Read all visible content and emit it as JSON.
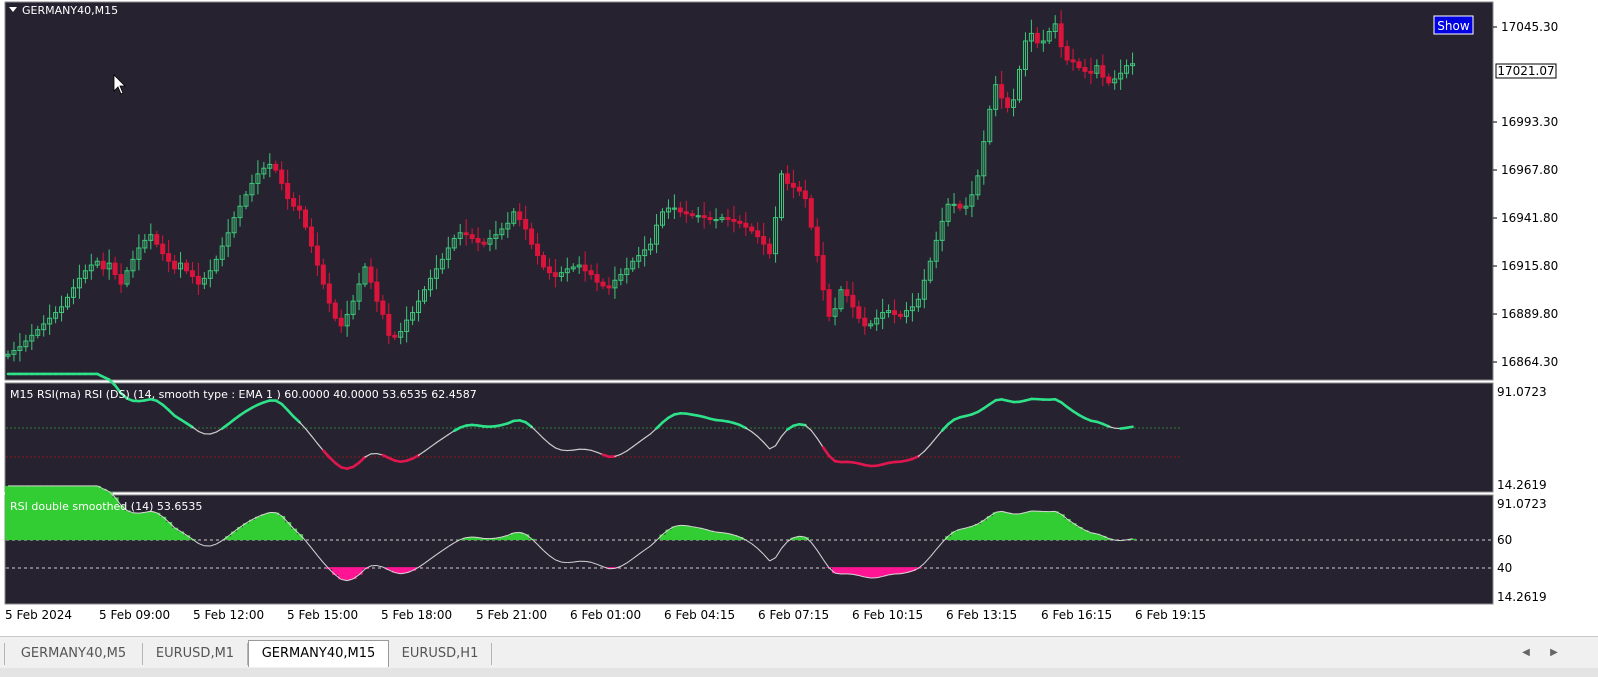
{
  "chart": {
    "symbol_label": "GERMANY40,M15",
    "show_button": "Show",
    "price_axis": [
      "17045.30",
      "16993.30",
      "16967.80",
      "16941.80",
      "16915.80",
      "16889.80",
      "16864.30"
    ],
    "current_price": "17021.07"
  },
  "indicator1": {
    "label": "M15 RSI(ma) RSI (DS) (14, smooth type : EMA  1 ) 60.0000 40.0000 53.6535 62.4587",
    "axis_max": "91.0723",
    "axis_min": "14.2619"
  },
  "indicator2": {
    "label": "RSI double smoothed (14) 53.6535",
    "axis_max": "91.0723",
    "level_60": "60",
    "level_40": "40",
    "axis_min": "14.2619"
  },
  "time_axis": [
    "5 Feb 2024",
    "5 Feb 09:00",
    "5 Feb 12:00",
    "5 Feb 15:00",
    "5 Feb 18:00",
    "5 Feb 21:00",
    "6 Feb 01:00",
    "6 Feb 04:15",
    "6 Feb 07:15",
    "6 Feb 10:15",
    "6 Feb 13:15",
    "6 Feb 16:15",
    "6 Feb 19:15"
  ],
  "tabs": [
    {
      "label": "GERMANY40,M5",
      "active": false
    },
    {
      "label": "EURUSD,M1",
      "active": false
    },
    {
      "label": "GERMANY40,M15",
      "active": true
    },
    {
      "label": "EURUSD,H1",
      "active": false
    }
  ],
  "colors": {
    "background": "#272230",
    "bull": "#3cc878",
    "bear": "#dc143c",
    "rsi_up": "#2ee28a",
    "rsi_down": "#e0174f",
    "rsi_neutral": "#cccccc",
    "fill_up": "#32cd32",
    "fill_down": "#ff1493"
  },
  "chart_data": {
    "type": "candlestick",
    "price_range": [
      16855,
      17053
    ],
    "closes": [
      16868,
      16870,
      16872,
      16875,
      16878,
      16881,
      16884,
      16887,
      16890,
      16893,
      16898,
      16903,
      16908,
      16912,
      16915,
      16917,
      16913,
      16916,
      16910,
      16905,
      16912,
      16918,
      16924,
      16928,
      16931,
      16926,
      16921,
      16917,
      16913,
      16916,
      16912,
      16909,
      16905,
      16908,
      16912,
      16918,
      16925,
      16932,
      16940,
      16946,
      16952,
      16958,
      16963,
      16966,
      16968,
      16965,
      16958,
      16950,
      16946,
      16944,
      16935,
      16925,
      16915,
      16905,
      16895,
      16887,
      16883,
      16889,
      16896,
      16905,
      16914,
      16906,
      16896,
      16889,
      16878,
      16877,
      16880,
      16886,
      16890,
      16896,
      16902,
      16908,
      16913,
      16918,
      16924,
      16929,
      16932,
      16931,
      16929,
      16927,
      16926,
      16929,
      16931,
      16934,
      16937,
      16943,
      16939,
      16934,
      16926,
      16920,
      16914,
      16911,
      16909,
      16911,
      16913,
      16914,
      16915,
      16912,
      16910,
      16906,
      16904,
      16903,
      16907,
      16910,
      16913,
      16917,
      16920,
      16923,
      16926,
      16936,
      16943,
      16945,
      16945,
      16943,
      16942,
      16941,
      16941,
      16940,
      16939,
      16939,
      16940,
      16939,
      16938,
      16937,
      16935,
      16933,
      16930,
      16926,
      16921,
      16940,
      16963,
      16958,
      16956,
      16954,
      16950,
      16935,
      16920,
      16902,
      16888,
      16892,
      16902,
      16899,
      16893,
      16887,
      16883,
      16884,
      16887,
      16890,
      16891,
      16889,
      16888,
      16891,
      16893,
      16897,
      16907,
      16917,
      16928,
      16938,
      16947,
      16947,
      16945,
      16946,
      16952,
      16962,
      16980,
      16997,
      17010,
      17003,
      16998,
      17002,
      17018,
      17033,
      17037,
      17032,
      17033,
      17038,
      17042,
      17030,
      17023,
      17022,
      17019,
      17017,
      17016,
      17020,
      17014,
      17011,
      17013,
      17016,
      17020,
      17021
    ]
  }
}
